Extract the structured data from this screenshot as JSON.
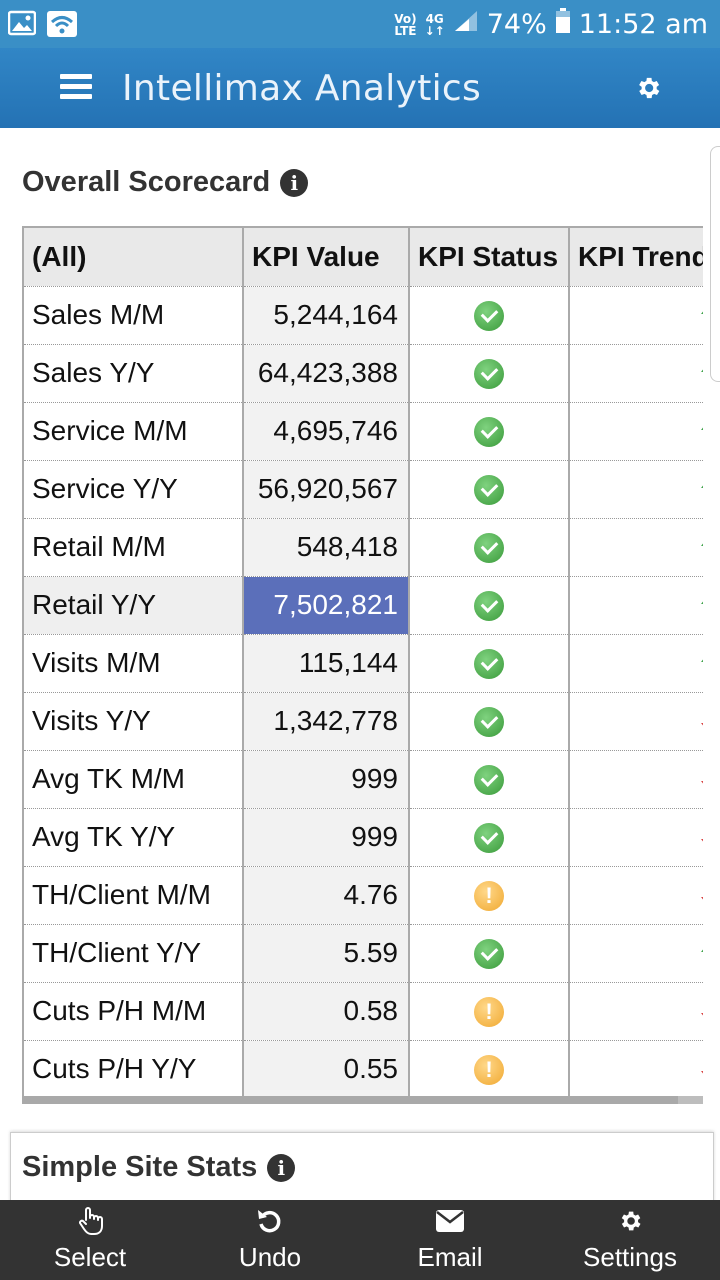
{
  "status_bar": {
    "network_top": "Vo)",
    "network_bottom": "LTE",
    "signal_top": "4G",
    "battery": "74%",
    "time": "11:52 am",
    "icons": [
      "image-icon",
      "wifi-icon",
      "signal-icon",
      "battery-icon"
    ]
  },
  "app_bar": {
    "title": "Intellimax Analytics",
    "menu_icon": "hamburger-menu-icon",
    "settings_icon": "gear-icon"
  },
  "scorecard": {
    "title": "Overall Scorecard",
    "info_icon": "i",
    "columns": [
      "(All)",
      "KPI Value",
      "KPI Status",
      "KPI Trend"
    ],
    "rows": [
      {
        "kpi": "Sales M/M",
        "value": "5,244,164",
        "status": "ok",
        "trend": "up"
      },
      {
        "kpi": "Sales Y/Y",
        "value": "64,423,388",
        "status": "ok",
        "trend": "up"
      },
      {
        "kpi": "Service M/M",
        "value": "4,695,746",
        "status": "ok",
        "trend": "up"
      },
      {
        "kpi": "Service Y/Y",
        "value": "56,920,567",
        "status": "ok",
        "trend": "up"
      },
      {
        "kpi": "Retail M/M",
        "value": "548,418",
        "status": "ok",
        "trend": "up"
      },
      {
        "kpi": "Retail Y/Y",
        "value": "7,502,821",
        "status": "ok",
        "trend": "up",
        "selected": true
      },
      {
        "kpi": "Visits M/M",
        "value": "115,144",
        "status": "ok",
        "trend": "up"
      },
      {
        "kpi": "Visits Y/Y",
        "value": "1,342,778",
        "status": "ok",
        "trend": "down"
      },
      {
        "kpi": "Avg TK M/M",
        "value": "999",
        "status": "ok",
        "trend": "down"
      },
      {
        "kpi": "Avg TK Y/Y",
        "value": "999",
        "status": "ok",
        "trend": "down"
      },
      {
        "kpi": "TH/Client M/M",
        "value": "4.76",
        "status": "warning",
        "trend": "down"
      },
      {
        "kpi": "TH/Client Y/Y",
        "value": "5.59",
        "status": "ok",
        "trend": "up"
      },
      {
        "kpi": "Cuts P/H M/M",
        "value": "0.58",
        "status": "warning",
        "trend": "down"
      },
      {
        "kpi": "Cuts P/H Y/Y",
        "value": "0.55",
        "status": "warning",
        "trend": "down"
      }
    ],
    "colors": {
      "ok": "#3a9a3a",
      "warning": "#f0a830",
      "up": "#3fa34a",
      "down": "#d94343",
      "selected": "#5b6fba"
    }
  },
  "site_stats": {
    "title": "Simple Site Stats",
    "info_icon": "i"
  },
  "toolbar": {
    "items": [
      {
        "label": "Select",
        "icon": "pointer-hand-icon"
      },
      {
        "label": "Undo",
        "icon": "undo-icon"
      },
      {
        "label": "Email",
        "icon": "envelope-icon"
      },
      {
        "label": "Settings",
        "icon": "gear-icon"
      }
    ]
  }
}
